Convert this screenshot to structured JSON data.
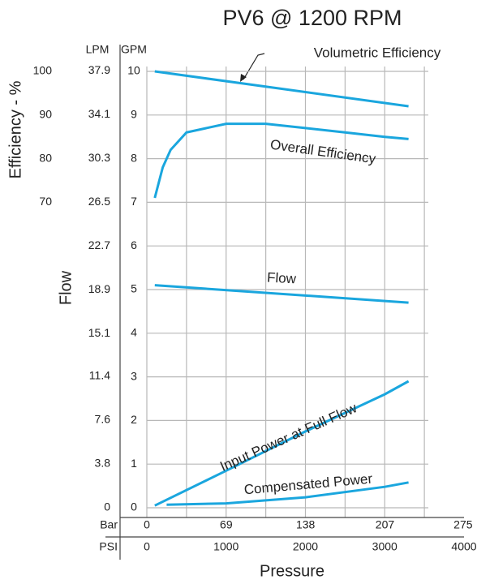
{
  "chart_data": {
    "type": "line",
    "title": "PV6 @ 1200 RPM",
    "xlabel": "Pressure",
    "ylabel": "Flow",
    "y2label": "Efficiency - %",
    "y_unit": "GPM",
    "y3_unit": "LPM",
    "x_unit": "PSI",
    "x2_unit": "Bar",
    "xlim": [
      0,
      4000
    ],
    "xticks": [
      0,
      1000,
      2000,
      3000,
      4000
    ],
    "x2lim": [
      0,
      275.8
    ],
    "x2ticks": [
      0,
      69,
      138,
      207,
      275
    ],
    "ylim": [
      0,
      10
    ],
    "yticks": [
      0,
      1,
      2,
      3,
      4,
      5,
      6,
      7,
      8,
      9,
      10
    ],
    "y2lim": [
      0,
      100
    ],
    "y2ticks": [
      70,
      80,
      90,
      100
    ],
    "y3lim": [
      0,
      37.85
    ],
    "y3ticks": [
      0,
      3.8,
      7.6,
      11.4,
      15.1,
      18.9,
      22.7,
      26.5,
      30.3,
      34.1,
      37.9
    ],
    "grid": true,
    "series": [
      {
        "name": "Volumetric Efficiency",
        "color": "#1aa6de",
        "axis": "y2",
        "x": [
          100,
          3300
        ],
        "values": [
          100,
          92
        ]
      },
      {
        "name": "Overall Efficiency",
        "color": "#1aa6de",
        "axis": "y2",
        "x": [
          100,
          200,
          300,
          500,
          1000,
          1500,
          2000,
          2500,
          3000,
          3300
        ],
        "values": [
          71,
          78,
          82,
          86,
          88,
          88,
          87,
          86,
          85,
          84.5
        ]
      },
      {
        "name": "Flow",
        "color": "#1aa6de",
        "x": [
          100,
          3300
        ],
        "values": [
          5.1,
          4.7
        ]
      },
      {
        "name": "Input Power at Full Flow",
        "color": "#1aa6de",
        "x": [
          100,
          1000,
          2000,
          3000,
          3300
        ],
        "values": [
          0.05,
          0.85,
          1.75,
          2.6,
          2.9
        ]
      },
      {
        "name": "Compensated Power",
        "color": "#1aa6de",
        "x": [
          250,
          1000,
          2000,
          3000,
          3300
        ],
        "values": [
          0.07,
          0.1,
          0.24,
          0.48,
          0.58
        ]
      }
    ]
  }
}
